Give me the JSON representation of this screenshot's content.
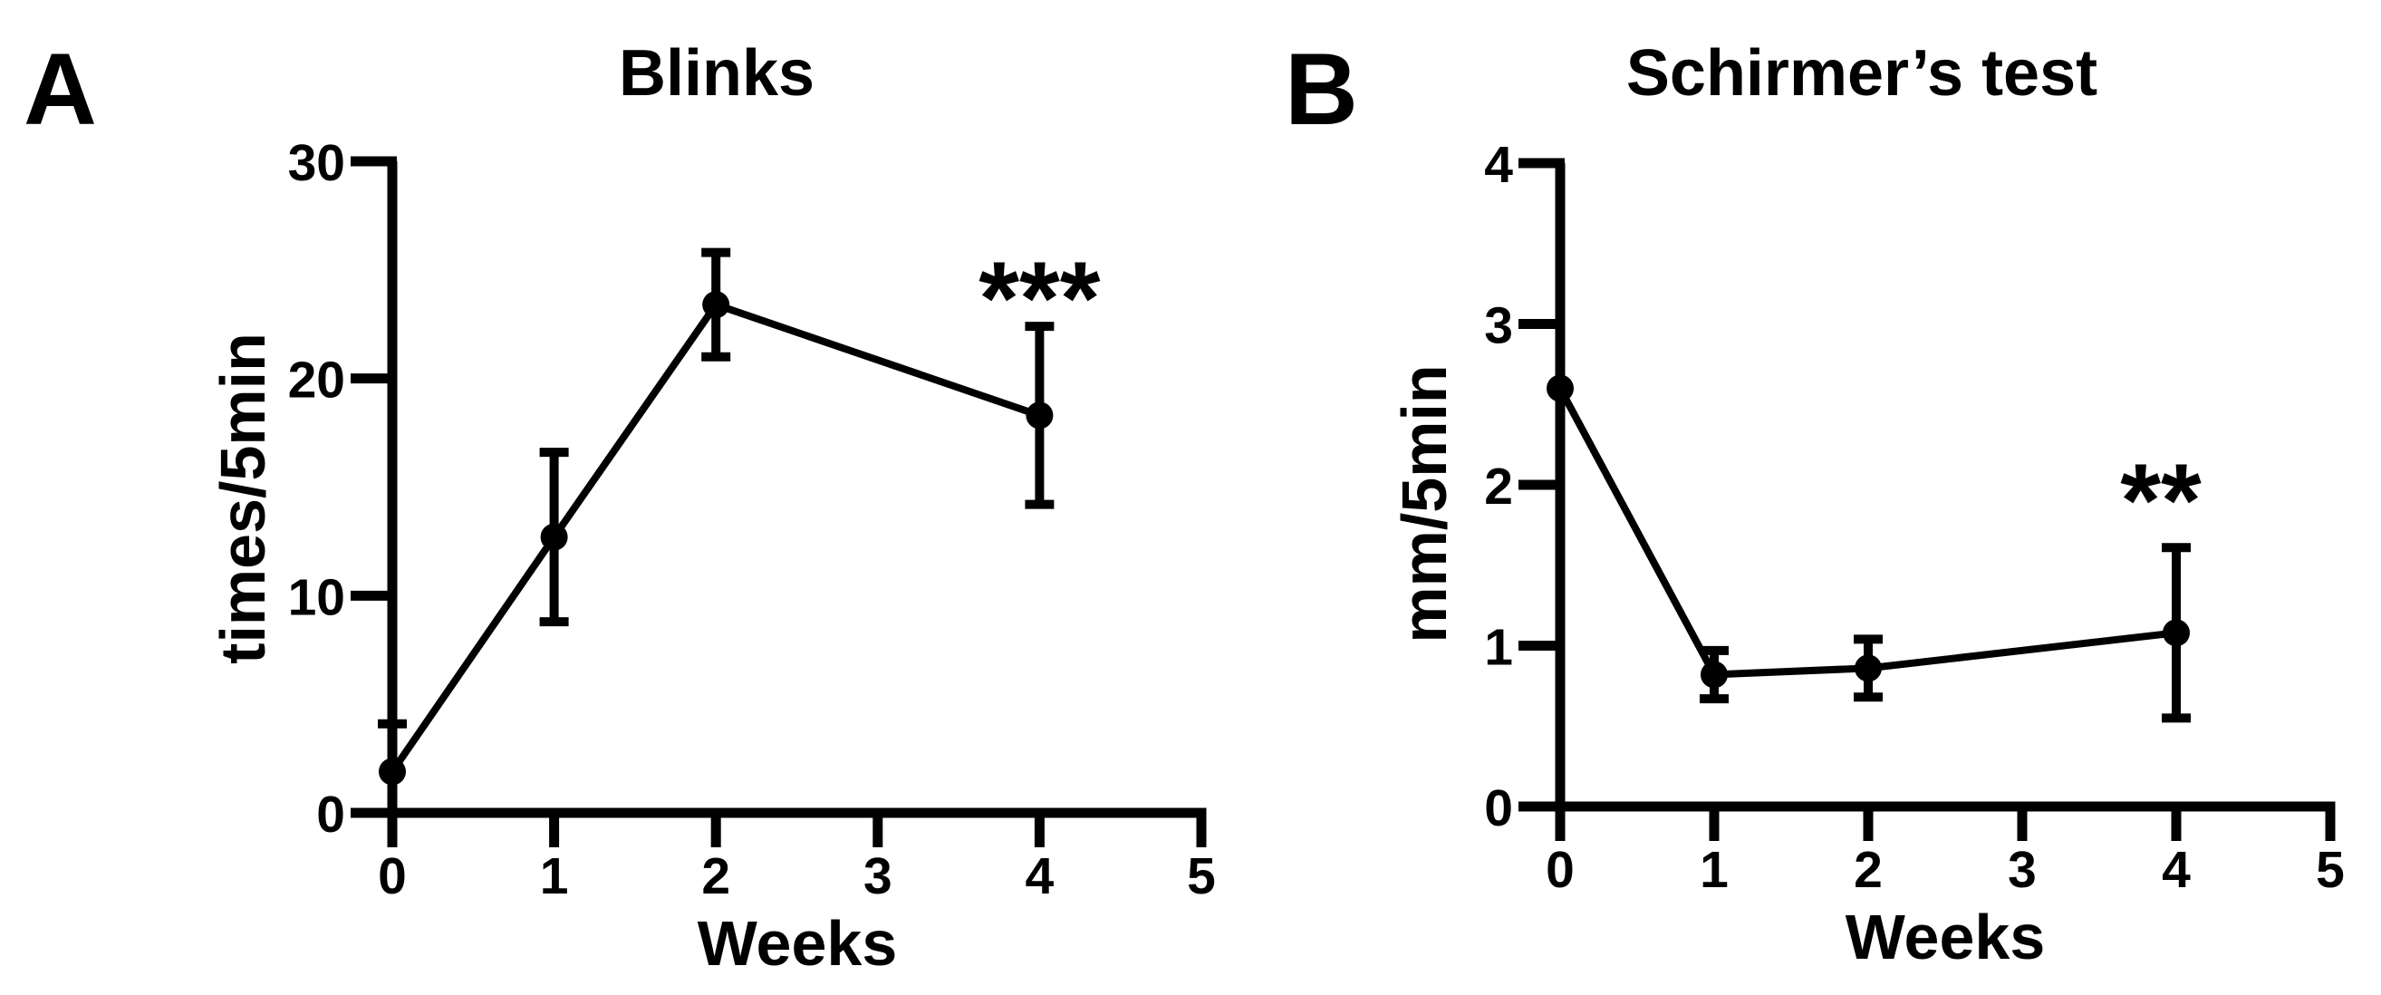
{
  "colors": {
    "background": "#ffffff",
    "ink": "#000000"
  },
  "chart_data": [
    {
      "type": "line",
      "panel_letter": "A",
      "title": "Blinks",
      "xlabel": "Weeks",
      "ylabel": "times/5min",
      "x": [
        0,
        1,
        2,
        4
      ],
      "y": [
        1.9,
        12.7,
        23.4,
        18.3
      ],
      "y_err": [
        2.2,
        3.9,
        2.4,
        4.1
      ],
      "xlim": [
        0,
        5
      ],
      "ylim": [
        0,
        30
      ],
      "x_ticks": [
        0,
        1,
        2,
        3,
        4,
        5
      ],
      "x_tick_labels": [
        "0",
        "1",
        "2",
        "3",
        "4",
        "5"
      ],
      "y_ticks": [
        0,
        10,
        20,
        30
      ],
      "y_tick_labels": [
        "0",
        "10",
        "20",
        "30"
      ],
      "marker": "filled-circle",
      "error_bars": "caps, lower bar at week 0 clipped at axis",
      "grid": false,
      "legend": "none",
      "annotation": {
        "text": "***",
        "x": 4.0,
        "y": 24.4
      }
    },
    {
      "type": "line",
      "panel_letter": "B",
      "title": "Schirmer’s test",
      "xlabel": "Weeks",
      "ylabel": "mm/5min",
      "x": [
        0,
        1,
        2,
        4
      ],
      "y": [
        2.6,
        0.82,
        0.86,
        1.08
      ],
      "y_err": [
        0,
        0.15,
        0.18,
        0.53
      ],
      "xlim": [
        0,
        5
      ],
      "ylim": [
        0,
        4
      ],
      "x_ticks": [
        0,
        1,
        2,
        3,
        4,
        5
      ],
      "x_tick_labels": [
        "0",
        "1",
        "2",
        "3",
        "4",
        "5"
      ],
      "y_ticks": [
        0,
        1,
        2,
        3,
        4
      ],
      "y_tick_labels": [
        "0",
        "1",
        "2",
        "3",
        "4"
      ],
      "marker": "filled-circle",
      "error_bars": "caps, none visible at week 0",
      "grid": false,
      "legend": "none",
      "annotation": {
        "text": "**",
        "x": 3.9,
        "y": 2.0
      }
    }
  ]
}
